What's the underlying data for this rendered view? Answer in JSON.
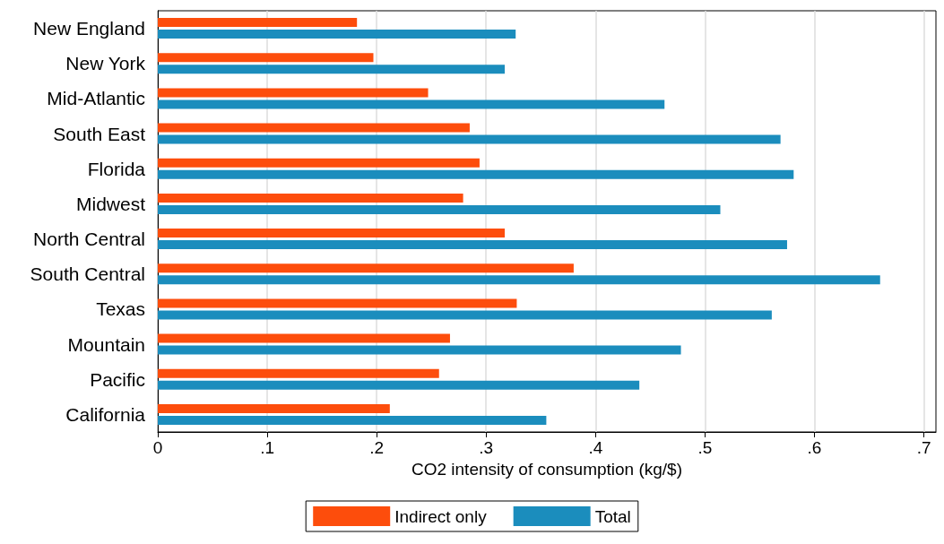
{
  "chart_data": {
    "type": "bar",
    "orientation": "horizontal",
    "xlabel": "CO2 intensity of consumption (kg/$)",
    "categories": [
      "New England",
      "New York",
      "Mid-Atlantic",
      "South East",
      "Florida",
      "Midwest",
      "North Central",
      "South Central",
      "Texas",
      "Mountain",
      "Pacific",
      "California"
    ],
    "series": [
      {
        "name": "Indirect only",
        "color": "#fd4d0c",
        "values": [
          0.182,
          0.197,
          0.247,
          0.285,
          0.294,
          0.279,
          0.317,
          0.38,
          0.328,
          0.267,
          0.257,
          0.212
        ]
      },
      {
        "name": "Total",
        "color": "#1b8dbd",
        "values": [
          0.327,
          0.317,
          0.463,
          0.569,
          0.581,
          0.514,
          0.575,
          0.66,
          0.561,
          0.478,
          0.44,
          0.355
        ]
      }
    ],
    "xlim": [
      0,
      0.711
    ],
    "xticks": [
      0,
      {
        "value": 0.1,
        "label": ".1"
      },
      {
        "value": 0.2,
        "label": ".2"
      },
      {
        "value": 0.3,
        "label": ".3"
      },
      {
        "value": 0.4,
        "label": ".4"
      },
      {
        "value": 0.5,
        "label": ".5"
      },
      {
        "value": 0.6,
        "label": ".6"
      },
      {
        "value": 0.7,
        "label": ".7"
      }
    ],
    "grid": "x",
    "legend": "bottom"
  }
}
